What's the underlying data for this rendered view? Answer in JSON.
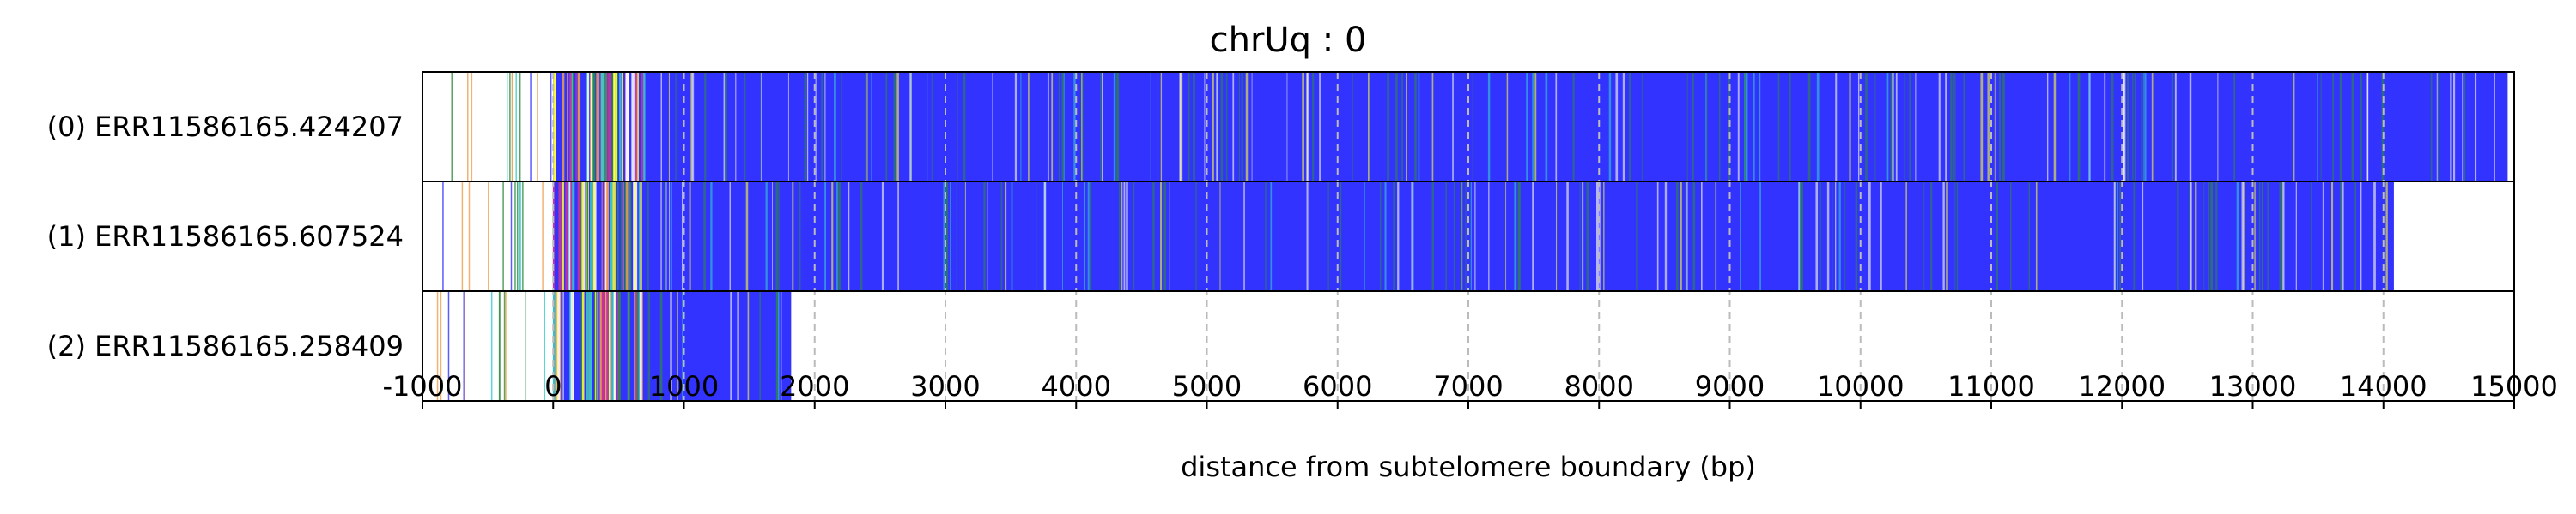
{
  "chart_data": {
    "type": "bar",
    "title": "chrUq : 0",
    "xlabel": "distance from subtelomere boundary (bp)",
    "xlim": [
      -1000,
      15000
    ],
    "xticks": [
      "-1000",
      "0",
      "1000",
      "2000",
      "3000",
      "4000",
      "5000",
      "6000",
      "7000",
      "8000",
      "9000",
      "10000",
      "11000",
      "12000",
      "13000",
      "14000",
      "15000"
    ],
    "grid": "vertical dashed",
    "reads": [
      {
        "label": "(0) ERR11586165.424207",
        "start": -1000,
        "end": 14950
      },
      {
        "label": "(1) ERR11586165.607524",
        "start": -1000,
        "end": 14080
      },
      {
        "label": "(2) ERR11586165.258409",
        "start": -1000,
        "end": 1820
      }
    ],
    "colors": {
      "fill": "#3333ff",
      "green": "#2e8b3e",
      "yellow": "#ffff33",
      "magenta": "#cc3399",
      "white": "#ffffff",
      "cyan": "#33cccc",
      "orange": "#f0a050",
      "grid": "#bbbbbb"
    }
  }
}
